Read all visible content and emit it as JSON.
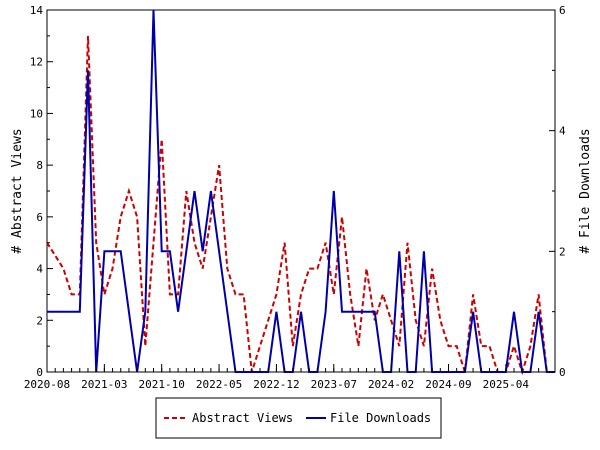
{
  "chart_data": {
    "type": "line",
    "title": "",
    "x_tick_labels": [
      "2020-08",
      "2021-03",
      "2021-10",
      "2022-05",
      "2022-12",
      "2023-07",
      "2024-02",
      "2024-09",
      "2025-04"
    ],
    "ylabel_left": "# Abstract Views",
    "ylabel_right": "# File Downloads",
    "ylim_left": [
      0,
      14
    ],
    "ylim_right": [
      0,
      6
    ],
    "y_ticks_left": [
      0,
      2,
      4,
      6,
      8,
      10,
      12,
      14
    ],
    "y_ticks_right": [
      0,
      2,
      4,
      6
    ],
    "legend_position": "bottom",
    "series": [
      {
        "name": "Abstract Views",
        "axis": "left",
        "color": "#cc0000",
        "dash": "dashed",
        "values": [
          5,
          4.5,
          4,
          3,
          3,
          13,
          5,
          3,
          4,
          6,
          7,
          6,
          1,
          5,
          9,
          3,
          3,
          7,
          5,
          4,
          6,
          8,
          4,
          3,
          3,
          0,
          1,
          2,
          3,
          5,
          1,
          3,
          4,
          4,
          5,
          3,
          6,
          3,
          1,
          4,
          2,
          3,
          2,
          1,
          5,
          2,
          1,
          4,
          2,
          1,
          1,
          0,
          3,
          1,
          1,
          0,
          0,
          1,
          0,
          1,
          3,
          0,
          0
        ]
      },
      {
        "name": "File Downloads",
        "axis": "right",
        "color": "#0000aa",
        "dash": "solid",
        "values": [
          1,
          1,
          1,
          1,
          1,
          5,
          0,
          2,
          2,
          2,
          1,
          0,
          1,
          6,
          2,
          2,
          1,
          2,
          3,
          2,
          3,
          2,
          1,
          0,
          0,
          0,
          0,
          0,
          1,
          0,
          0,
          1,
          0,
          0,
          1,
          3,
          1,
          1,
          1,
          1,
          1,
          0,
          0,
          2,
          0,
          0,
          2,
          0,
          0,
          0,
          0,
          0,
          1,
          0,
          0,
          0,
          0,
          1,
          0,
          0,
          1,
          0,
          0
        ]
      }
    ]
  }
}
